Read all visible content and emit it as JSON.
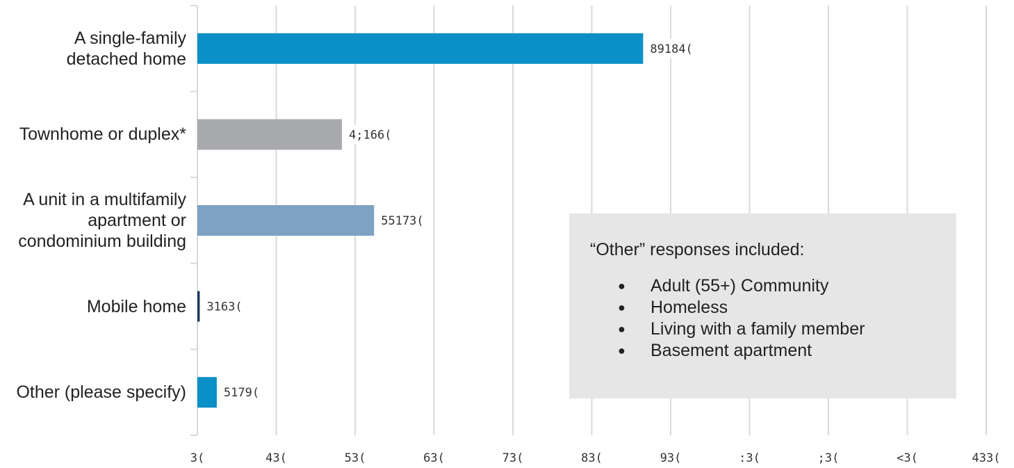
{
  "colors": {
    "single_family": "#0a8fc7",
    "townhome": "#a7a9ac",
    "multifamily": "#7ea2c2",
    "mobile": "#1f3a5f",
    "other": "#0a8fc7",
    "grid": "#d9d9d9",
    "note_bg": "#e6e6e6"
  },
  "chart_data": {
    "type": "bar",
    "orientation": "horizontal",
    "categories": [
      "A single-family detached home",
      "Townhome or duplex*",
      "A unit in a multifamily apartment or condominium building",
      "Mobile home",
      "Other (please specify)"
    ],
    "category_lines": [
      [
        "A single-family",
        "detached home"
      ],
      [
        "Townhome or duplex*"
      ],
      [
        "A unit in a multifamily",
        "apartment or",
        "condominium building"
      ],
      [
        "Mobile home"
      ],
      [
        "Other (please specify)"
      ]
    ],
    "values": [
      56.51,
      18.33,
      22.4,
      0.3,
      2.46
    ],
    "data_labels": [
      "89184(",
      "4;166(",
      "55173(",
      "3163(",
      "5179("
    ],
    "xlim": [
      0,
      100
    ],
    "x_ticks": [
      0,
      10,
      20,
      30,
      40,
      50,
      60,
      70,
      80,
      90,
      100
    ],
    "x_tick_labels": [
      "3(",
      "43(",
      "53(",
      "63(",
      "73(",
      "83(",
      "93(",
      ":3(",
      ";3(",
      "<3(",
      "433("
    ],
    "grid": true,
    "title": "",
    "xlabel": "",
    "ylabel": ""
  },
  "note": {
    "title": "“Other” responses included:",
    "items": [
      "Adult (55+) Community",
      "Homeless",
      "Living with a family member",
      "Basement apartment"
    ]
  }
}
